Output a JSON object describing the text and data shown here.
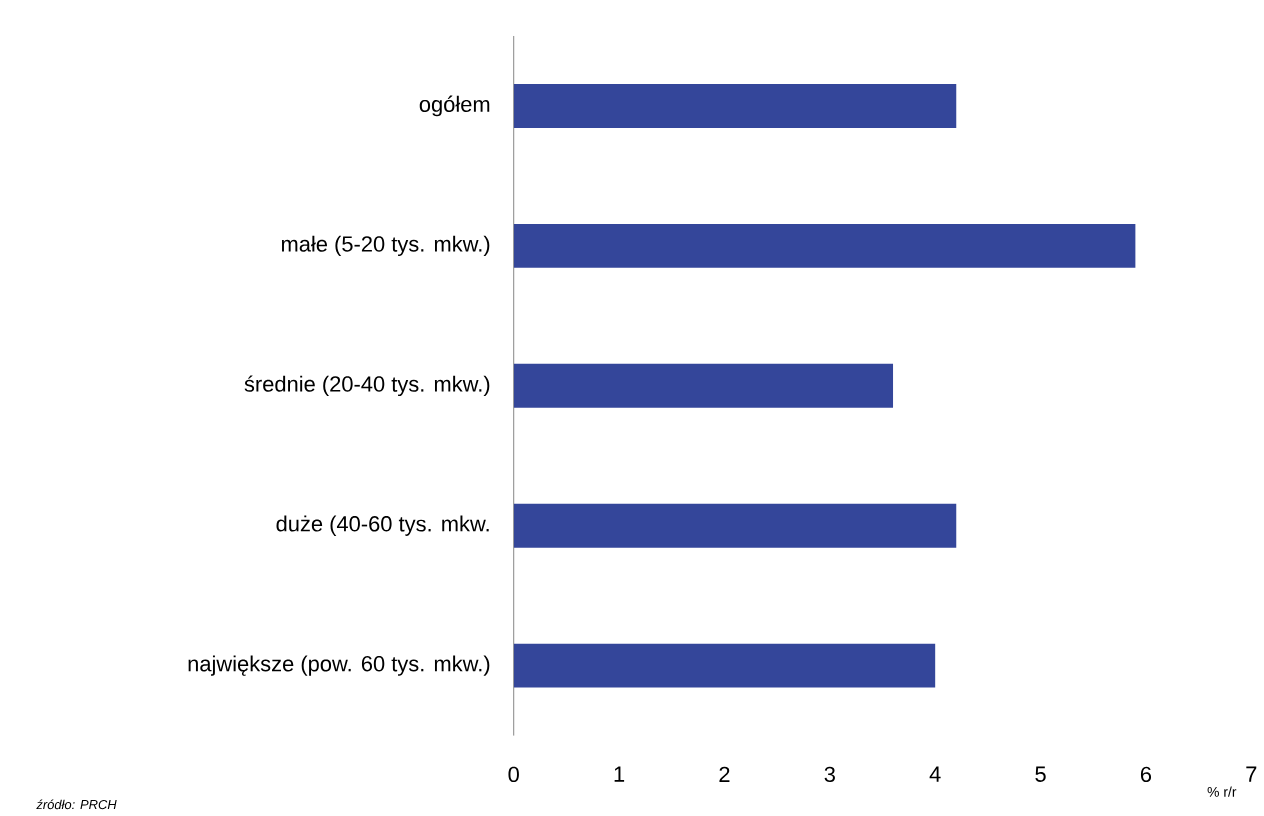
{
  "chart_data": {
    "type": "bar",
    "orientation": "horizontal",
    "categories": [
      "ogółem",
      "małe (5-20 tys. mkw.)",
      "średnie (20-40 tys. mkw.)",
      "duże (40-60 tys. mkw.",
      "największe (pow. 60 tys. mkw.)"
    ],
    "values": [
      4.2,
      5.9,
      3.6,
      4.2,
      4.0
    ],
    "color": "#34469a",
    "xlim": [
      0,
      7
    ],
    "xticks": [
      0,
      1,
      2,
      3,
      4,
      5,
      6,
      7
    ],
    "xlabel": "% r/r",
    "annotations": [
      "źródło: PRCH"
    ]
  }
}
